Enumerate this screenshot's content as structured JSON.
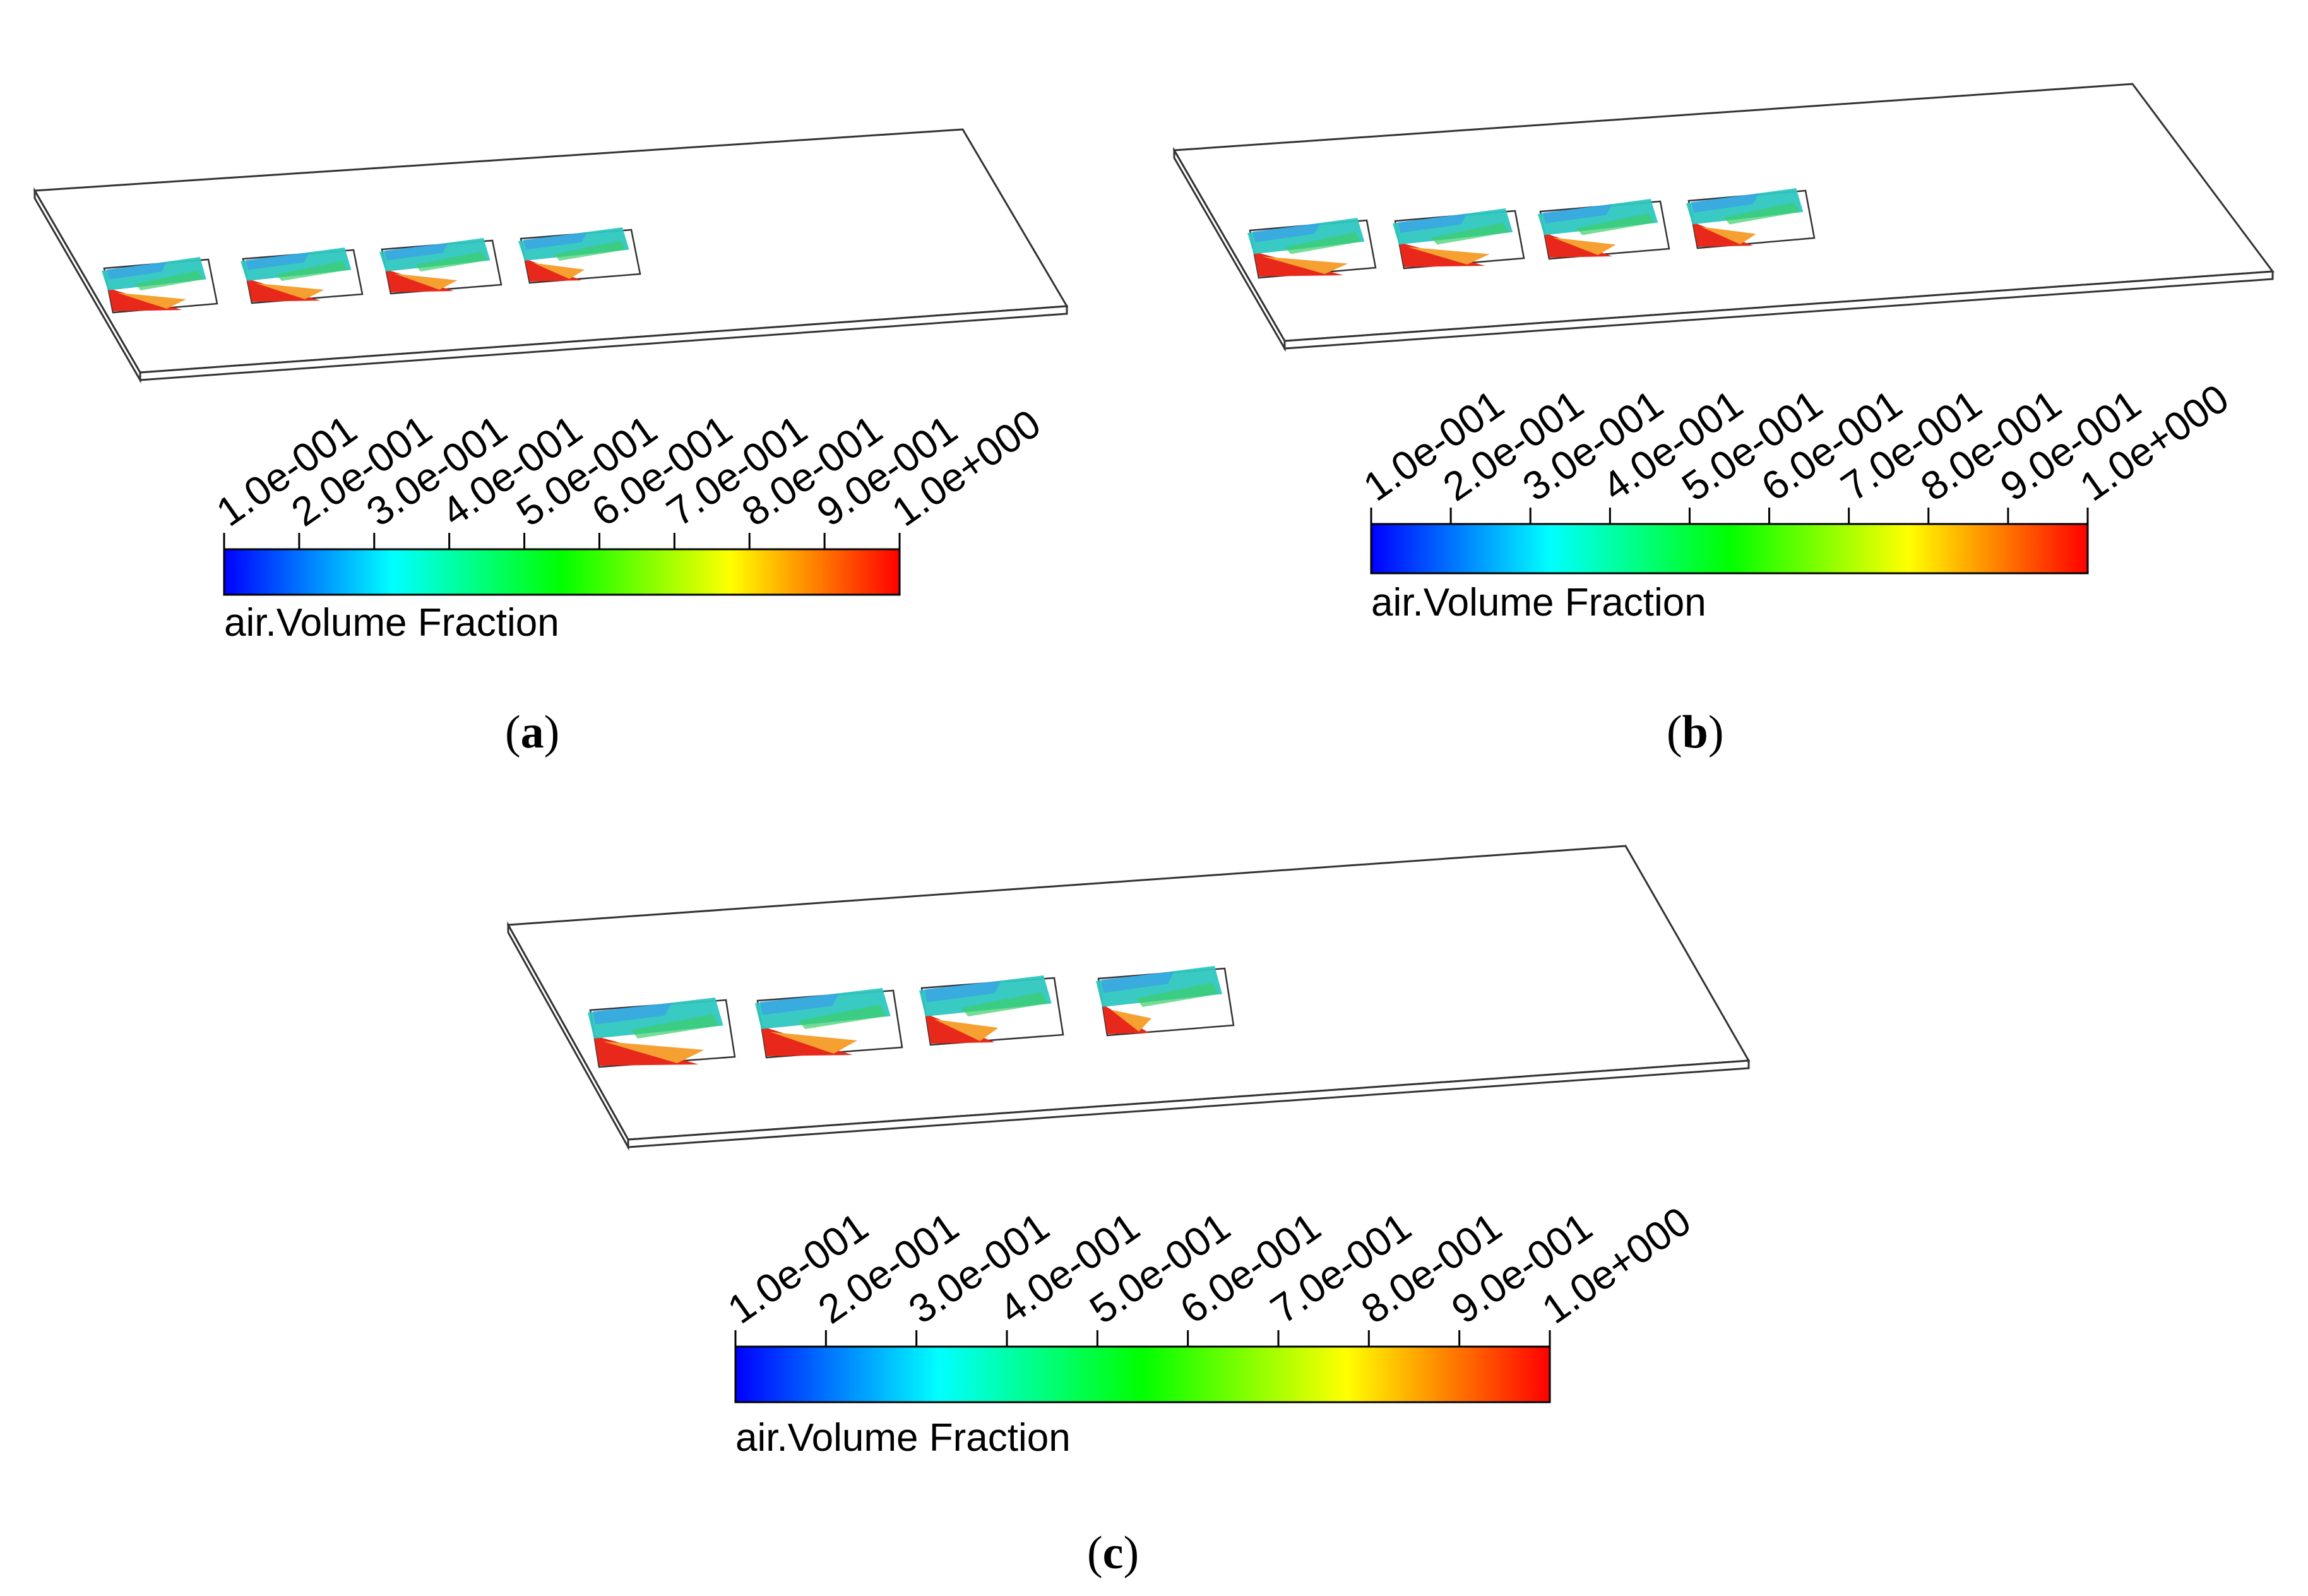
{
  "colorbar": {
    "title": "air.Volume Fraction",
    "tick_labels": [
      "1.0e-001",
      "2.0e-001",
      "3.0e-001",
      "4.0e-001",
      "5.0e-001",
      "6.0e-001",
      "7.0e-001",
      "8.0e-001",
      "9.0e-001",
      "1.0e+000"
    ],
    "colors": [
      "#0000ff",
      "#0080ff",
      "#00ffff",
      "#00ff80",
      "#00ff00",
      "#80ff00",
      "#ffff00",
      "#ff8000",
      "#ff0000"
    ]
  },
  "panels": [
    {
      "id": "a",
      "label": "a"
    },
    {
      "id": "b",
      "label": "b"
    },
    {
      "id": "c",
      "label": "c"
    }
  ],
  "colors": {
    "outline": "#333333",
    "red_zone": "#e8281a",
    "teal": "#2ec7c0",
    "blue": "#3aa0e8",
    "green": "#3ccf6a"
  }
}
